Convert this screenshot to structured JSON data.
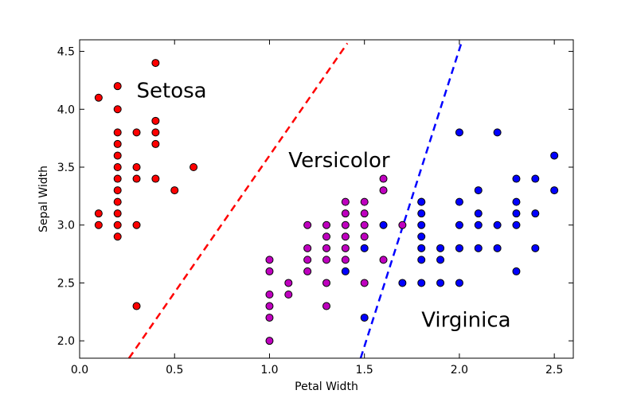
{
  "chart_data": {
    "type": "scatter",
    "xlabel": "Petal Width",
    "ylabel": "Sepal Width",
    "xlim": [
      0.0,
      2.6
    ],
    "ylim": [
      1.85,
      4.6
    ],
    "xticks": [
      "0.0",
      "0.5",
      "1.0",
      "1.5",
      "2.0",
      "2.5"
    ],
    "yticks": [
      "2.0",
      "2.5",
      "3.0",
      "3.5",
      "4.0",
      "4.5"
    ],
    "grid": false,
    "series": [
      {
        "color": "#ff0000",
        "points": [
          [
            0.1,
            4.1
          ],
          [
            0.1,
            3.1
          ],
          [
            0.1,
            3.0
          ],
          [
            0.2,
            4.2
          ],
          [
            0.2,
            4.0
          ],
          [
            0.2,
            3.8
          ],
          [
            0.2,
            3.7
          ],
          [
            0.2,
            3.6
          ],
          [
            0.2,
            3.5
          ],
          [
            0.2,
            3.4
          ],
          [
            0.2,
            3.3
          ],
          [
            0.2,
            3.2
          ],
          [
            0.2,
            3.1
          ],
          [
            0.2,
            3.0
          ],
          [
            0.2,
            2.9
          ],
          [
            0.3,
            3.8
          ],
          [
            0.3,
            3.5
          ],
          [
            0.3,
            3.4
          ],
          [
            0.3,
            3.0
          ],
          [
            0.3,
            2.3
          ],
          [
            0.4,
            4.4
          ],
          [
            0.4,
            3.9
          ],
          [
            0.4,
            3.8
          ],
          [
            0.4,
            3.7
          ],
          [
            0.4,
            3.4
          ],
          [
            0.5,
            3.3
          ],
          [
            0.6,
            3.5
          ]
        ]
      },
      {
        "color": "#bf00bf",
        "points": [
          [
            1.0,
            2.7
          ],
          [
            1.0,
            2.6
          ],
          [
            1.0,
            2.4
          ],
          [
            1.0,
            2.3
          ],
          [
            1.0,
            2.2
          ],
          [
            1.0,
            2.0
          ],
          [
            1.1,
            2.5
          ],
          [
            1.1,
            2.4
          ],
          [
            1.2,
            3.0
          ],
          [
            1.2,
            2.8
          ],
          [
            1.2,
            2.7
          ],
          [
            1.2,
            2.6
          ],
          [
            1.3,
            3.0
          ],
          [
            1.3,
            2.9
          ],
          [
            1.3,
            2.8
          ],
          [
            1.3,
            2.7
          ],
          [
            1.3,
            2.5
          ],
          [
            1.3,
            2.3
          ],
          [
            1.4,
            3.2
          ],
          [
            1.4,
            3.1
          ],
          [
            1.4,
            3.0
          ],
          [
            1.4,
            2.9
          ],
          [
            1.4,
            2.8
          ],
          [
            1.4,
            2.7
          ],
          [
            1.5,
            3.2
          ],
          [
            1.5,
            3.1
          ],
          [
            1.5,
            3.0
          ],
          [
            1.5,
            2.9
          ],
          [
            1.5,
            2.5
          ],
          [
            1.6,
            3.4
          ],
          [
            1.6,
            3.3
          ],
          [
            1.6,
            2.7
          ],
          [
            1.7,
            3.0
          ],
          [
            1.8,
            3.2
          ]
        ]
      },
      {
        "color": "#0000ff",
        "points": [
          [
            1.4,
            2.6
          ],
          [
            1.5,
            2.8
          ],
          [
            1.5,
            2.2
          ],
          [
            1.6,
            3.0
          ],
          [
            1.7,
            2.5
          ],
          [
            1.8,
            3.2
          ],
          [
            1.8,
            3.1
          ],
          [
            1.8,
            3.0
          ],
          [
            1.8,
            2.9
          ],
          [
            1.8,
            2.8
          ],
          [
            1.8,
            2.7
          ],
          [
            1.8,
            2.5
          ],
          [
            1.9,
            2.8
          ],
          [
            1.9,
            2.7
          ],
          [
            1.9,
            2.5
          ],
          [
            2.0,
            3.8
          ],
          [
            2.0,
            3.2
          ],
          [
            2.0,
            3.0
          ],
          [
            2.0,
            2.8
          ],
          [
            2.0,
            2.5
          ],
          [
            2.1,
            3.3
          ],
          [
            2.1,
            3.1
          ],
          [
            2.1,
            3.0
          ],
          [
            2.1,
            2.8
          ],
          [
            2.2,
            3.8
          ],
          [
            2.2,
            3.0
          ],
          [
            2.2,
            2.8
          ],
          [
            2.3,
            3.4
          ],
          [
            2.3,
            3.2
          ],
          [
            2.3,
            3.1
          ],
          [
            2.3,
            3.0
          ],
          [
            2.3,
            2.6
          ],
          [
            2.4,
            3.4
          ],
          [
            2.4,
            3.1
          ],
          [
            2.4,
            2.8
          ],
          [
            2.5,
            3.6
          ],
          [
            2.5,
            3.3
          ]
        ]
      }
    ],
    "decision_lines": [
      {
        "color": "#ff0000",
        "from": [
          0.26,
          1.85
        ],
        "to": [
          1.41,
          4.57
        ]
      },
      {
        "color": "#0000ff",
        "from": [
          1.48,
          1.85
        ],
        "to": [
          2.01,
          4.57
        ]
      }
    ],
    "annotations": [
      {
        "text": "Setosa",
        "x": 0.3,
        "y": 4.1
      },
      {
        "text": "Versicolor",
        "x": 1.1,
        "y": 3.5
      },
      {
        "text": "Virginica",
        "x": 1.8,
        "y": 2.12
      }
    ]
  }
}
